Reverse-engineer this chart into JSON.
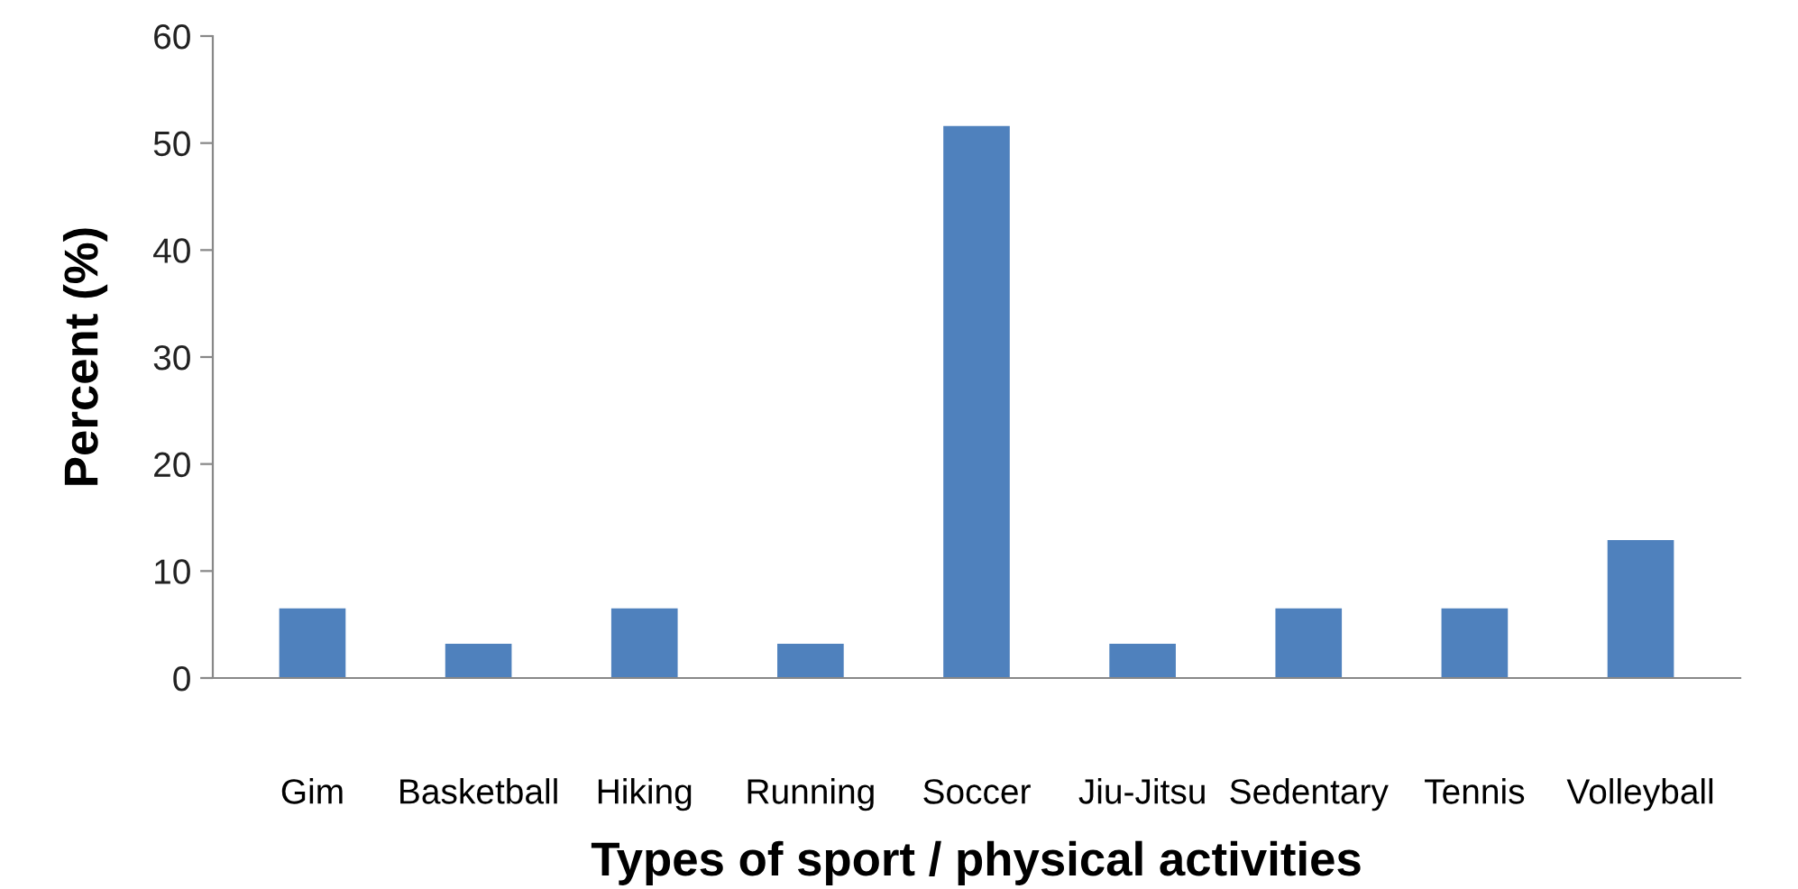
{
  "chart_data": {
    "type": "bar",
    "xlabel": "Types of sport / physical activities",
    "ylabel": "Percent (%)",
    "categories": [
      "Gim",
      "Basketball",
      "Hiking",
      "Running",
      "Soccer",
      "Jiu-Jitsu",
      "Sedentary",
      "Tennis",
      "Volleyball"
    ],
    "values": [
      6.5,
      3.2,
      6.5,
      3.2,
      51.6,
      3.2,
      6.5,
      6.5,
      12.9
    ],
    "color": "#4f81bd",
    "ylim": [
      0,
      60
    ],
    "yticks": [
      0,
      10,
      20,
      30,
      40,
      50,
      60
    ],
    "grid": false,
    "legend": false
  }
}
